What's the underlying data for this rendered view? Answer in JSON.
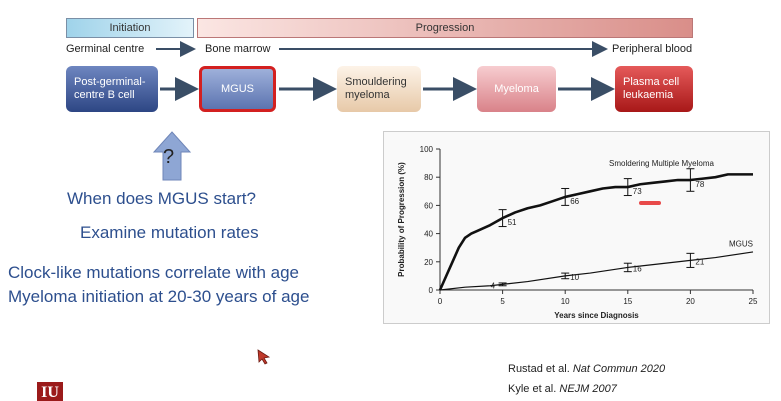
{
  "phases": {
    "initiation": "Initiation",
    "progression": "Progression"
  },
  "locations": {
    "germinal": "Germinal centre",
    "marrow": "Bone marrow",
    "blood": "Peripheral blood"
  },
  "stages": {
    "b_cell": [
      "Post-germinal-",
      "centre B cell"
    ],
    "mgus": "MGUS",
    "smouldering": [
      "Smouldering",
      "myeloma"
    ],
    "myeloma": "Myeloma",
    "pcl": [
      "Plasma cell",
      "leukaemia"
    ]
  },
  "question_mark": "?",
  "text": {
    "q1": "When does MGUS start?",
    "q2": "Examine mutation rates",
    "l1": "Clock-like mutations correlate with age",
    "l2": "Myeloma initiation at 20-30 years of age"
  },
  "citations": {
    "c1_authors": "Rustad et al.",
    "c1_journal": "Nat Commun 2020",
    "c2_authors": "Kyle et al.",
    "c2_journal": "NEJM 2007"
  },
  "logo_text": "IU",
  "colors": {
    "arrow": "#3a4e66",
    "mgus_border": "#d32020",
    "curve": "#111111"
  },
  "chart_data": {
    "type": "line",
    "xlabel": "Years since Diagnosis",
    "ylabel": "Probability of Progression (%)",
    "xlim": [
      0,
      25
    ],
    "ylim": [
      0,
      100
    ],
    "xticks": [
      0,
      5,
      10,
      15,
      20,
      25
    ],
    "yticks": [
      0,
      20,
      40,
      60,
      80,
      100
    ],
    "series": [
      {
        "name": "Smoldering Multiple Myeloma",
        "x": [
          0,
          0.5,
          1,
          1.5,
          2,
          2.5,
          3,
          4,
          5,
          6,
          7,
          8,
          9,
          10,
          11,
          12,
          13,
          14,
          15,
          16,
          17,
          18,
          19,
          20,
          21,
          22,
          23,
          24,
          25
        ],
        "y": [
          0,
          10,
          20,
          30,
          37,
          40,
          42,
          46,
          51,
          55,
          58,
          60,
          63,
          66,
          68,
          70,
          72,
          73,
          73,
          75,
          76,
          77,
          78,
          78,
          79,
          80,
          82,
          82,
          82
        ],
        "error_points": [
          {
            "x": 5,
            "y": 51,
            "low": 45,
            "high": 57,
            "label": "51"
          },
          {
            "x": 10,
            "y": 66,
            "low": 60,
            "high": 72,
            "label": "66"
          },
          {
            "x": 15,
            "y": 73,
            "low": 67,
            "high": 79,
            "label": "73"
          },
          {
            "x": 20,
            "y": 78,
            "low": 70,
            "high": 86,
            "label": "78"
          }
        ]
      },
      {
        "name": "MGUS",
        "x": [
          0,
          2,
          4,
          5,
          7,
          10,
          12,
          15,
          17,
          20,
          22,
          25
        ],
        "y": [
          0,
          2,
          3,
          4,
          6,
          10,
          12,
          16,
          18,
          21,
          23,
          27
        ],
        "error_points": [
          {
            "x": 5,
            "y": 4,
            "low": 3,
            "high": 5,
            "label": "4"
          },
          {
            "x": 10,
            "y": 10,
            "low": 8,
            "high": 12,
            "label": "10"
          },
          {
            "x": 15,
            "y": 16,
            "low": 13,
            "high": 19,
            "label": "16"
          },
          {
            "x": 20,
            "y": 21,
            "low": 16,
            "high": 26,
            "label": "21"
          }
        ]
      }
    ]
  }
}
